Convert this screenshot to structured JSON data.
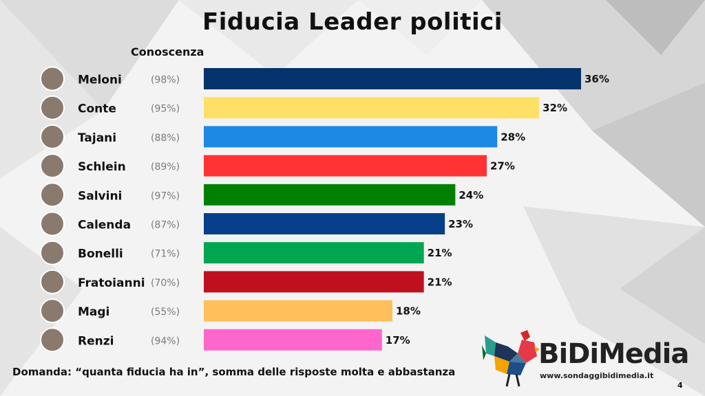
{
  "title": "Fiducia Leader politici",
  "knowledge_header": "Conoscenza",
  "footer_question": "Domanda: “quanta fiducia ha in”, somma delle risposte molta e abbastanza",
  "page_number": "4",
  "logo": {
    "name": "BiDiMedia",
    "url": "www.sondaggibidimedia.it"
  },
  "chart_data": {
    "type": "bar",
    "orientation": "horizontal",
    "title": "Fiducia Leader politici",
    "categories": [
      "Meloni",
      "Conte",
      "Tajani",
      "Schlein",
      "Salvini",
      "Calenda",
      "Bonelli",
      "Fratoianni",
      "Magi",
      "Renzi"
    ],
    "values": [
      36,
      32,
      28,
      27,
      24,
      23,
      21,
      21,
      18,
      17
    ],
    "value_labels": [
      "36%",
      "32%",
      "28%",
      "27%",
      "24%",
      "23%",
      "21%",
      "21%",
      "18%",
      "17%"
    ],
    "knowledge_labels": [
      "(98%)",
      "(95%)",
      "(88%)",
      "(89%)",
      "(97%)",
      "(87%)",
      "(71%)",
      "(70%)",
      "(55%)",
      "(94%)"
    ],
    "colors": [
      "#05336b",
      "#ffe066",
      "#1e88e5",
      "#ff3333",
      "#008000",
      "#073f8a",
      "#00a651",
      "#bf1020",
      "#ffbf5a",
      "#ff66cc"
    ],
    "xlim": [
      0,
      36
    ],
    "grid": false,
    "legend": "none"
  }
}
